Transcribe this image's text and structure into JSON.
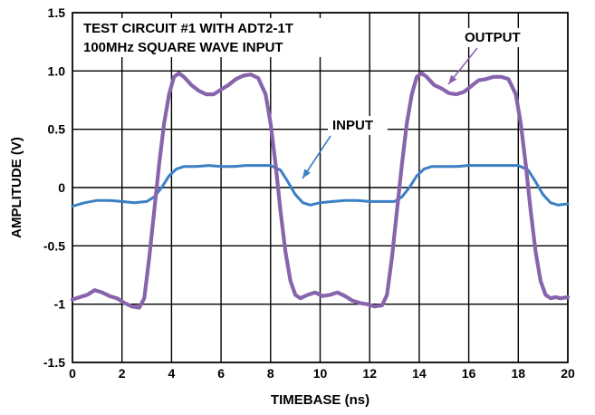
{
  "chart_data": {
    "type": "line",
    "title_lines": [
      "TEST CIRCUIT #1 WITH ADT2-1T",
      "100MHz SQUARE WAVE INPUT"
    ],
    "xlabel": "TIMEBASE (ns)",
    "ylabel": "AMPLITUDE (V)",
    "xlim": [
      0,
      20
    ],
    "ylim": [
      -1.5,
      1.5
    ],
    "xticks": [
      0,
      2,
      4,
      6,
      8,
      10,
      12,
      14,
      16,
      18,
      20
    ],
    "xtick_labels": [
      "0",
      "2",
      "4",
      "6",
      "8",
      "10",
      "12",
      "14",
      "16",
      "18",
      "20"
    ],
    "yticks": [
      -1.5,
      -1,
      -0.5,
      0,
      0.5,
      1.0,
      1.5
    ],
    "ytick_labels": [
      "-1.5",
      "-1",
      "-0.5",
      "0",
      "0.5",
      "1.0",
      "1.5"
    ],
    "grid": true,
    "annotations": [
      {
        "text": "OUTPUT",
        "series": "OUTPUT",
        "at": [
          15.0,
          0.9
        ]
      },
      {
        "text": "INPUT",
        "series": "INPUT",
        "at": [
          9.3,
          0.1
        ]
      }
    ],
    "series": [
      {
        "name": "INPUT",
        "color": "#3b7fc4",
        "x": [
          0,
          0.5,
          1,
          1.5,
          2,
          2.5,
          3,
          3.3,
          3.6,
          3.9,
          4.2,
          4.5,
          5,
          5.5,
          6,
          6.5,
          7,
          7.5,
          8,
          8.4,
          8.7,
          9.0,
          9.3,
          9.6,
          10,
          10.5,
          11,
          11.5,
          12,
          12.5,
          13,
          13.3,
          13.6,
          13.9,
          14.2,
          14.5,
          15,
          15.5,
          16,
          16.5,
          17,
          17.5,
          18,
          18.4,
          18.7,
          19.0,
          19.3,
          19.6,
          20
        ],
        "y": [
          -0.16,
          -0.13,
          -0.11,
          -0.11,
          -0.12,
          -0.13,
          -0.12,
          -0.08,
          0.0,
          0.1,
          0.16,
          0.18,
          0.18,
          0.19,
          0.18,
          0.18,
          0.19,
          0.19,
          0.19,
          0.15,
          0.05,
          -0.06,
          -0.13,
          -0.15,
          -0.13,
          -0.12,
          -0.11,
          -0.11,
          -0.12,
          -0.12,
          -0.12,
          -0.08,
          0.0,
          0.1,
          0.16,
          0.18,
          0.18,
          0.18,
          0.19,
          0.19,
          0.19,
          0.19,
          0.19,
          0.15,
          0.05,
          -0.06,
          -0.13,
          -0.15,
          -0.14
        ]
      },
      {
        "name": "OUTPUT",
        "color": "#8864ad",
        "x": [
          0,
          0.3,
          0.6,
          0.9,
          1.2,
          1.5,
          1.8,
          2.1,
          2.4,
          2.7,
          2.9,
          3.1,
          3.3,
          3.5,
          3.7,
          3.9,
          4.1,
          4.3,
          4.5,
          4.8,
          5.1,
          5.4,
          5.7,
          6.0,
          6.3,
          6.6,
          6.9,
          7.2,
          7.5,
          7.8,
          8.0,
          8.2,
          8.4,
          8.6,
          8.8,
          9.0,
          9.2,
          9.5,
          9.8,
          10.1,
          10.4,
          10.7,
          11.0,
          11.3,
          11.6,
          11.9,
          12.2,
          12.5,
          12.7,
          12.9,
          13.1,
          13.3,
          13.5,
          13.7,
          13.9,
          14.1,
          14.3,
          14.6,
          14.9,
          15.2,
          15.5,
          15.8,
          16.1,
          16.4,
          16.7,
          17.0,
          17.3,
          17.6,
          17.9,
          18.1,
          18.3,
          18.5,
          18.7,
          18.9,
          19.1,
          19.3,
          19.5,
          19.7,
          20
        ],
        "y": [
          -0.96,
          -0.94,
          -0.92,
          -0.88,
          -0.9,
          -0.93,
          -0.95,
          -0.99,
          -1.02,
          -1.03,
          -0.95,
          -0.6,
          -0.2,
          0.2,
          0.55,
          0.8,
          0.95,
          0.98,
          0.95,
          0.88,
          0.83,
          0.8,
          0.8,
          0.84,
          0.88,
          0.93,
          0.96,
          0.97,
          0.94,
          0.8,
          0.55,
          0.2,
          -0.2,
          -0.55,
          -0.8,
          -0.92,
          -0.95,
          -0.92,
          -0.9,
          -0.93,
          -0.92,
          -0.9,
          -0.93,
          -0.97,
          -0.99,
          -1.0,
          -1.02,
          -1.01,
          -0.92,
          -0.6,
          -0.2,
          0.2,
          0.55,
          0.8,
          0.95,
          0.98,
          0.95,
          0.88,
          0.85,
          0.81,
          0.8,
          0.82,
          0.87,
          0.92,
          0.93,
          0.95,
          0.95,
          0.93,
          0.8,
          0.55,
          0.2,
          -0.2,
          -0.55,
          -0.8,
          -0.92,
          -0.95,
          -0.94,
          -0.95,
          -0.94
        ]
      }
    ]
  }
}
